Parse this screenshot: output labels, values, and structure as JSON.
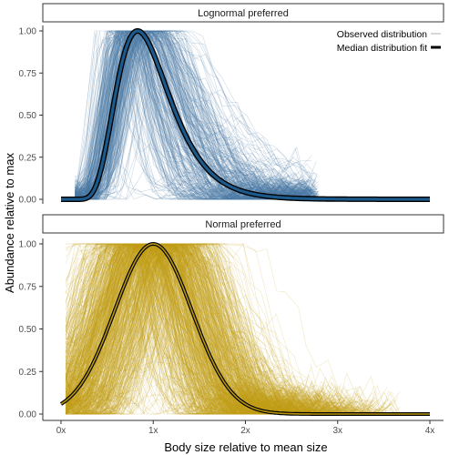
{
  "chart_data": [
    {
      "type": "line",
      "panel": "Lognormal preferred",
      "x_range": [
        0,
        4
      ],
      "ylim": [
        0,
        1
      ],
      "x_ticks": [
        "0x",
        "1x",
        "2x",
        "3x",
        "4x"
      ],
      "y_ticks": [
        "0.00",
        "0.25",
        "0.50",
        "0.75",
        "1.00"
      ],
      "fit": {
        "shape": "lognormal",
        "mode": 0.83,
        "sigma": 0.35
      },
      "observed_series_approx_count": 300,
      "observed_range": [
        0.2,
        2.6
      ]
    },
    {
      "type": "line",
      "panel": "Normal preferred",
      "x_range": [
        0,
        4
      ],
      "ylim": [
        0,
        1
      ],
      "x_ticks": [
        "0x",
        "1x",
        "2x",
        "3x",
        "4x"
      ],
      "y_ticks": [
        "0.00",
        "0.25",
        "0.50",
        "0.75",
        "1.00"
      ],
      "fit": {
        "shape": "normal",
        "mean": 1.0,
        "sd": 0.42
      },
      "observed_series_approx_count": 700,
      "observed_range": [
        0.05,
        3.7
      ]
    }
  ],
  "xlabel": "Body size relative to mean size",
  "ylabel": "Abundance relative to max",
  "legend": {
    "position": "top-right",
    "observed": "Observed distribution",
    "median": "Median distribution fit"
  },
  "colors": {
    "lognormal": "#4a7aa5",
    "lognormal_fit": "#1c5a8c",
    "normal": "#c4a018",
    "normal_fit": "#b8960c",
    "fit_outline": "#000000",
    "strip_fill": "#ffffff",
    "strip_border": "#333333"
  }
}
